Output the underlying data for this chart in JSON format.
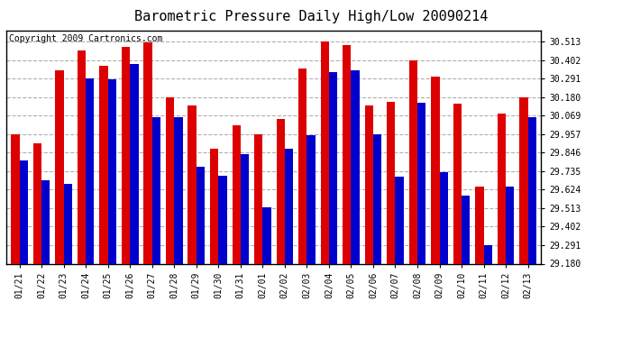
{
  "title": "Barometric Pressure Daily High/Low 20090214",
  "copyright_text": "Copyright 2009 Cartronics.com",
  "dates": [
    "01/21",
    "01/22",
    "01/23",
    "01/24",
    "01/25",
    "01/26",
    "01/27",
    "01/28",
    "01/29",
    "01/30",
    "01/31",
    "02/01",
    "02/02",
    "02/03",
    "02/04",
    "02/05",
    "02/06",
    "02/07",
    "02/08",
    "02/09",
    "02/10",
    "02/11",
    "02/12",
    "02/13"
  ],
  "highs": [
    29.957,
    29.9,
    30.34,
    30.46,
    30.37,
    30.48,
    30.51,
    30.18,
    30.13,
    29.87,
    30.01,
    29.957,
    30.05,
    30.35,
    30.513,
    30.49,
    30.13,
    30.15,
    30.4,
    30.3,
    30.14,
    29.64,
    30.08,
    30.18
  ],
  "lows": [
    29.8,
    29.68,
    29.66,
    30.29,
    30.285,
    30.38,
    30.06,
    30.06,
    29.76,
    29.71,
    29.84,
    29.52,
    29.87,
    29.95,
    30.33,
    30.34,
    29.957,
    29.7,
    30.145,
    29.73,
    29.59,
    29.29,
    29.64,
    30.06
  ],
  "high_color": "#dd0000",
  "low_color": "#0000cc",
  "bg_color": "#ffffff",
  "grid_color": "#b0b0b0",
  "ylim_min": 29.18,
  "ylim_max": 30.58,
  "yticks": [
    29.18,
    29.291,
    29.402,
    29.513,
    29.624,
    29.735,
    29.846,
    29.957,
    30.069,
    30.18,
    30.291,
    30.402,
    30.513
  ],
  "title_fontsize": 11,
  "copyright_fontsize": 7,
  "bar_width": 0.38
}
